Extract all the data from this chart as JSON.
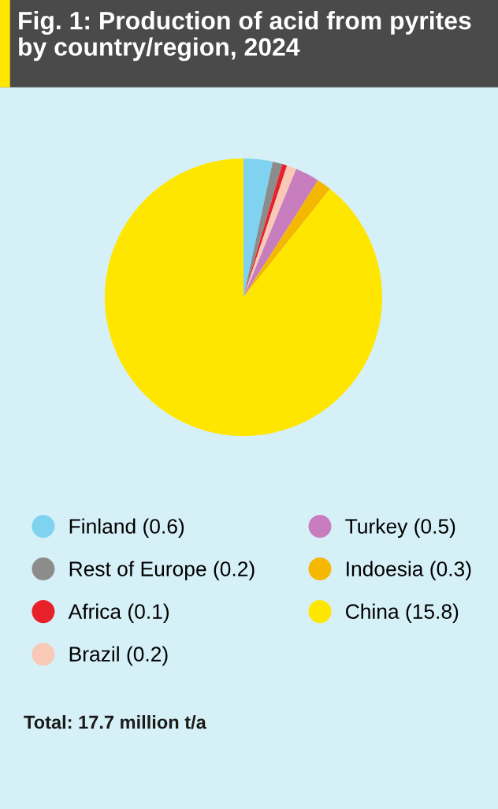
{
  "chart_data": {
    "type": "pie",
    "title": "Fig. 1: Production of acid from pyrites by country/region, 2024",
    "categories": [
      "Finland (0.6)",
      "Rest of Europe (0.2)",
      "Africa (0.1)",
      "Brazil (0.2)",
      "Turkey (0.5)",
      "Indoesia (0.3)",
      "China (15.8)"
    ],
    "values": [
      0.6,
      0.2,
      0.1,
      0.2,
      0.5,
      0.3,
      15.8
    ],
    "colors": [
      "#7fd3f0",
      "#8c8c8c",
      "#e8202a",
      "#f9c9b8",
      "#c87dbf",
      "#f5b800",
      "#ffe600"
    ],
    "legend": "bottom",
    "annotations": [
      "Total: 17.7 million t/a"
    ]
  }
}
